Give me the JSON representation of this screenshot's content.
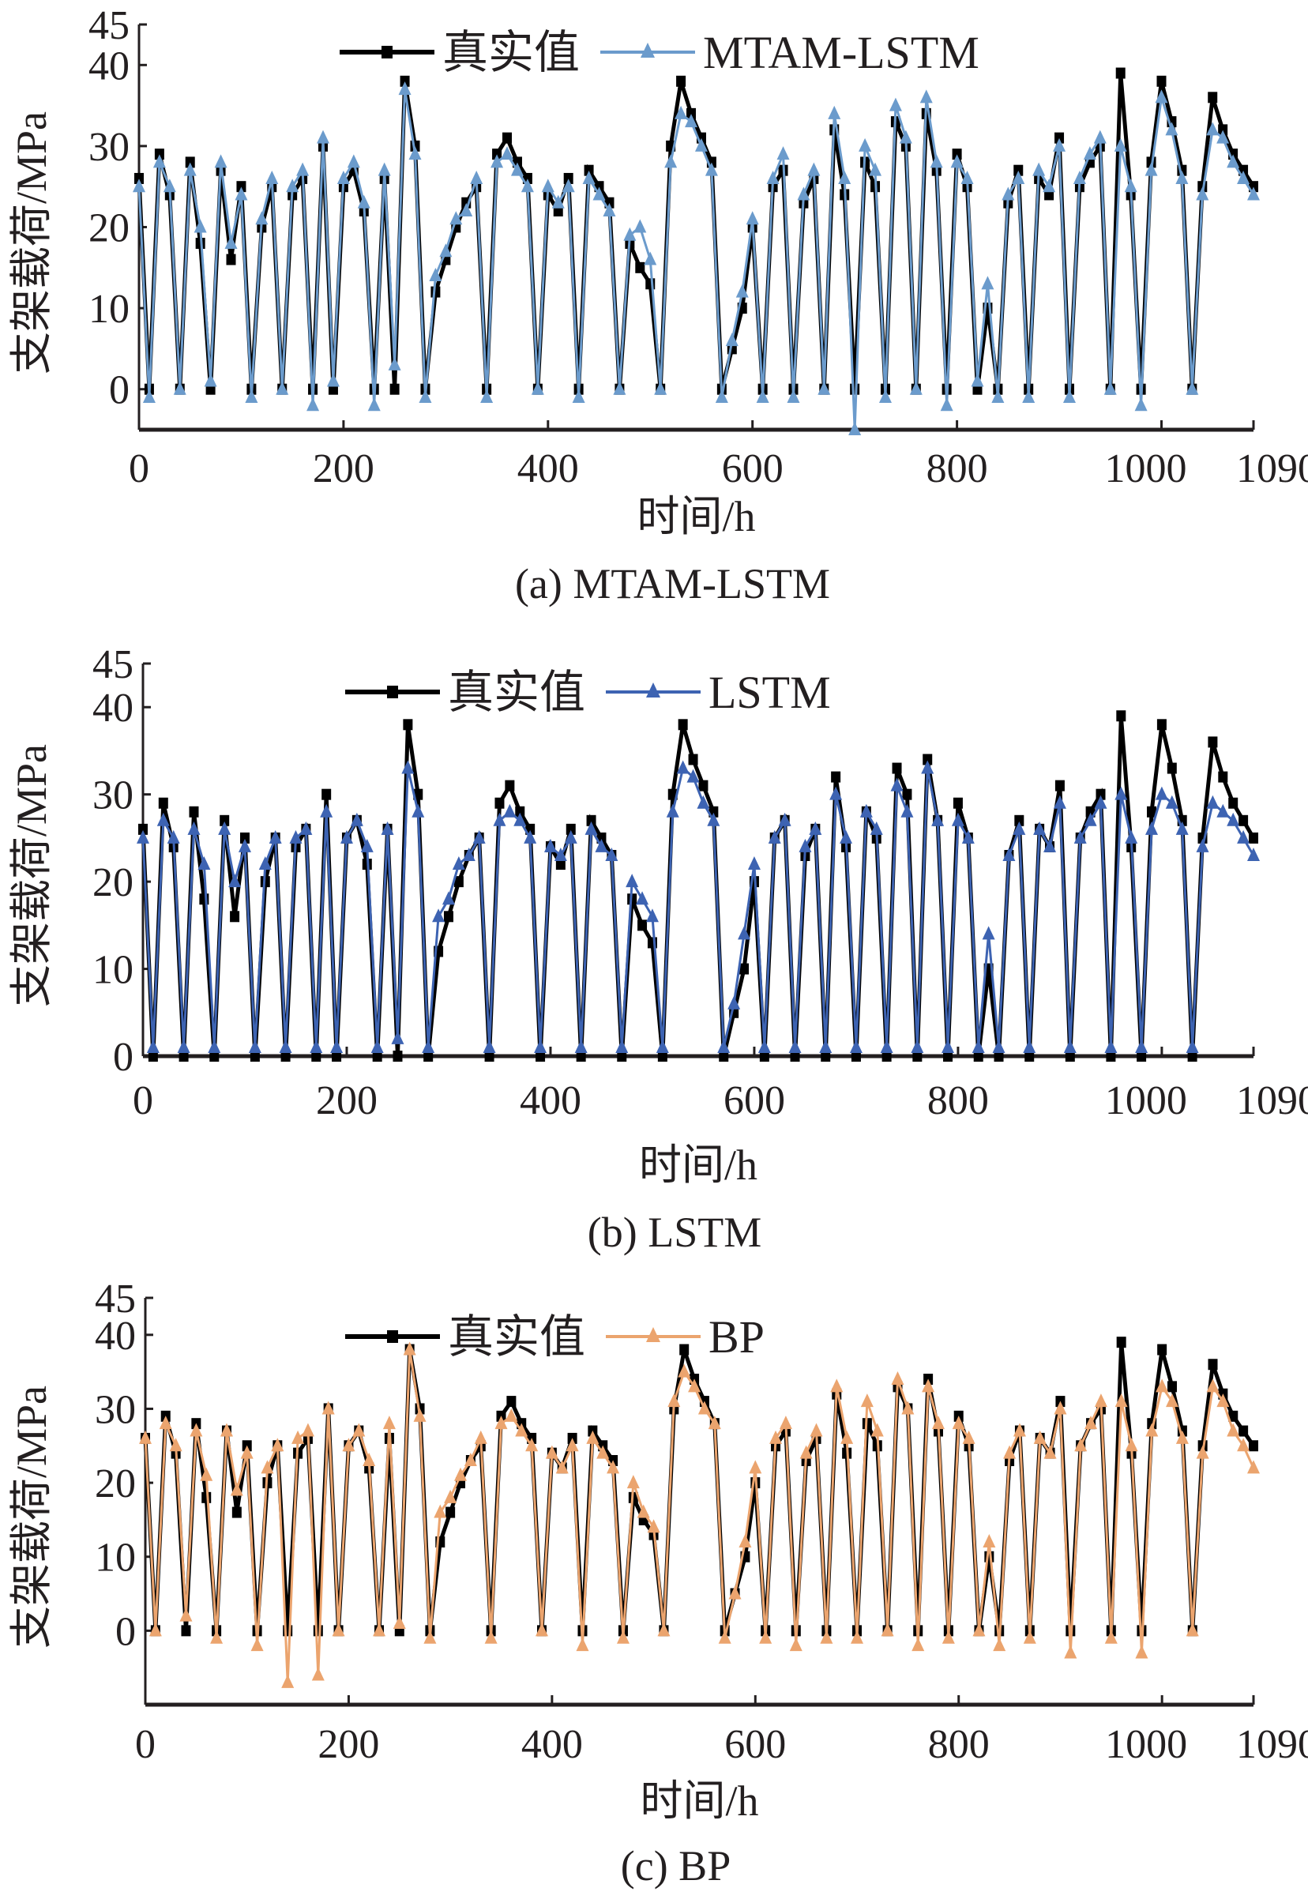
{
  "chart_data": [
    {
      "type": "line",
      "caption": "(a) MTAM-LSTM",
      "xlabel": "时间/h",
      "ylabel": "支架载荷/MPa",
      "xlim": [
        0,
        1090
      ],
      "ylim": [
        -5,
        45
      ],
      "xticks": [
        0,
        200,
        400,
        600,
        800,
        1000,
        1090
      ],
      "yticks": [
        0,
        10,
        20,
        30,
        40,
        45
      ],
      "grid": false,
      "legend_position": "top-center",
      "x_step": 10,
      "series": [
        {
          "name": "真实值",
          "color": "#000000",
          "marker": "square",
          "values": [
            26,
            0,
            29,
            24,
            0,
            28,
            18,
            0,
            27,
            16,
            25,
            0,
            20,
            25,
            0,
            24,
            26,
            0,
            30,
            0,
            25,
            27,
            22,
            0,
            26,
            0,
            38,
            30,
            0,
            12,
            16,
            20,
            23,
            25,
            0,
            29,
            31,
            28,
            26,
            0,
            24,
            22,
            26,
            0,
            27,
            25,
            23,
            0,
            18,
            15,
            13,
            0,
            30,
            38,
            34,
            31,
            28,
            0,
            5,
            10,
            20,
            0,
            25,
            27,
            0,
            23,
            26,
            0,
            32,
            24,
            0,
            28,
            25,
            0,
            33,
            30,
            0,
            34,
            27,
            0,
            29,
            25,
            0,
            10,
            0,
            23,
            27,
            0,
            26,
            24,
            31,
            0,
            25,
            28,
            30,
            0,
            39,
            24,
            0,
            28,
            38,
            33,
            27,
            0,
            25,
            36,
            32,
            29,
            27,
            25
          ]
        },
        {
          "name": "MTAM-LSTM",
          "color": "#6b9bcc",
          "marker": "triangle",
          "values": [
            25,
            -1,
            28,
            25,
            0,
            27,
            20,
            1,
            28,
            18,
            24,
            -1,
            21,
            26,
            0,
            25,
            27,
            -2,
            31,
            1,
            26,
            28,
            23,
            -2,
            27,
            3,
            37,
            29,
            -1,
            14,
            17,
            21,
            22,
            26,
            -1,
            28,
            29,
            27,
            25,
            0,
            25,
            23,
            25,
            -1,
            26,
            24,
            22,
            0,
            19,
            20,
            16,
            0,
            28,
            34,
            33,
            30,
            27,
            -1,
            6,
            12,
            21,
            -1,
            26,
            29,
            -1,
            24,
            27,
            0,
            34,
            26,
            -5,
            30,
            27,
            -1,
            35,
            31,
            0,
            36,
            28,
            -2,
            28,
            26,
            1,
            13,
            -1,
            24,
            26,
            -1,
            27,
            25,
            30,
            -1,
            26,
            29,
            31,
            0,
            30,
            25,
            -2,
            27,
            36,
            32,
            26,
            0,
            24,
            32,
            31,
            28,
            26,
            24
          ]
        }
      ]
    },
    {
      "type": "line",
      "caption": "(b) LSTM",
      "xlabel": "时间/h",
      "ylabel": "支架载荷/MPa",
      "xlim": [
        0,
        1090
      ],
      "ylim": [
        0,
        45
      ],
      "xticks": [
        0,
        200,
        400,
        600,
        800,
        1000,
        1090
      ],
      "yticks": [
        0,
        10,
        20,
        30,
        40,
        45
      ],
      "grid": false,
      "legend_position": "top-center",
      "x_step": 10,
      "series": [
        {
          "name": "真实值",
          "color": "#000000",
          "marker": "square",
          "values": [
            26,
            0,
            29,
            24,
            0,
            28,
            18,
            0,
            27,
            16,
            25,
            0,
            20,
            25,
            0,
            24,
            26,
            0,
            30,
            0,
            25,
            27,
            22,
            0,
            26,
            0,
            38,
            30,
            0,
            12,
            16,
            20,
            23,
            25,
            0,
            29,
            31,
            28,
            26,
            0,
            24,
            22,
            26,
            0,
            27,
            25,
            23,
            0,
            18,
            15,
            13,
            0,
            30,
            38,
            34,
            31,
            28,
            0,
            5,
            10,
            20,
            0,
            25,
            27,
            0,
            23,
            26,
            0,
            32,
            24,
            0,
            28,
            25,
            0,
            33,
            30,
            0,
            34,
            27,
            0,
            29,
            25,
            0,
            10,
            0,
            23,
            27,
            0,
            26,
            24,
            31,
            0,
            25,
            28,
            30,
            0,
            39,
            24,
            0,
            28,
            38,
            33,
            27,
            0,
            25,
            36,
            32,
            29,
            27,
            25
          ]
        },
        {
          "name": "LSTM",
          "color": "#3d63b2",
          "marker": "triangle",
          "values": [
            25,
            1,
            27,
            25,
            1,
            26,
            22,
            1,
            26,
            20,
            24,
            1,
            22,
            25,
            1,
            25,
            26,
            1,
            28,
            1,
            25,
            27,
            24,
            1,
            26,
            2,
            33,
            28,
            1,
            16,
            18,
            22,
            23,
            25,
            1,
            27,
            28,
            27,
            25,
            1,
            24,
            23,
            25,
            1,
            26,
            24,
            23,
            1,
            20,
            18,
            16,
            1,
            28,
            33,
            32,
            29,
            27,
            1,
            6,
            14,
            22,
            1,
            25,
            27,
            1,
            24,
            26,
            1,
            30,
            25,
            1,
            28,
            26,
            1,
            31,
            28,
            1,
            33,
            27,
            1,
            27,
            25,
            1,
            14,
            1,
            23,
            26,
            1,
            26,
            24,
            29,
            1,
            25,
            27,
            29,
            1,
            30,
            25,
            1,
            26,
            30,
            29,
            26,
            1,
            24,
            29,
            28,
            27,
            25,
            23
          ]
        }
      ]
    },
    {
      "type": "line",
      "caption": "(c) BP",
      "xlabel": "时间/h",
      "ylabel": "支架载荷/MPa",
      "xlim": [
        0,
        1090
      ],
      "ylim": [
        -10,
        45
      ],
      "xticks": [
        0,
        200,
        400,
        600,
        800,
        1000,
        1090
      ],
      "yticks": [
        0,
        10,
        20,
        30,
        40,
        45
      ],
      "grid": false,
      "legend_position": "top-center",
      "x_step": 10,
      "series": [
        {
          "name": "真实值",
          "color": "#000000",
          "marker": "square",
          "values": [
            26,
            0,
            29,
            24,
            0,
            28,
            18,
            0,
            27,
            16,
            25,
            0,
            20,
            25,
            0,
            24,
            26,
            0,
            30,
            0,
            25,
            27,
            22,
            0,
            26,
            0,
            38,
            30,
            0,
            12,
            16,
            20,
            23,
            25,
            0,
            29,
            31,
            28,
            26,
            0,
            24,
            22,
            26,
            0,
            27,
            25,
            23,
            0,
            18,
            15,
            13,
            0,
            30,
            38,
            34,
            31,
            28,
            0,
            5,
            10,
            20,
            0,
            25,
            27,
            0,
            23,
            26,
            0,
            32,
            24,
            0,
            28,
            25,
            0,
            33,
            30,
            0,
            34,
            27,
            0,
            29,
            25,
            0,
            10,
            0,
            23,
            27,
            0,
            26,
            24,
            31,
            0,
            25,
            28,
            30,
            0,
            39,
            24,
            0,
            28,
            38,
            33,
            27,
            0,
            25,
            36,
            32,
            29,
            27,
            25
          ]
        },
        {
          "name": "BP",
          "color": "#eba46e",
          "marker": "triangle",
          "values": [
            26,
            0,
            28,
            25,
            2,
            27,
            21,
            -1,
            27,
            19,
            24,
            -2,
            22,
            25,
            -7,
            26,
            27,
            -6,
            30,
            0,
            25,
            27,
            23,
            0,
            28,
            1,
            38,
            29,
            -1,
            16,
            18,
            21,
            23,
            26,
            -1,
            28,
            29,
            27,
            25,
            0,
            24,
            22,
            25,
            -2,
            26,
            24,
            22,
            -1,
            20,
            16,
            14,
            0,
            31,
            35,
            33,
            30,
            28,
            -1,
            5,
            12,
            22,
            -1,
            26,
            28,
            -2,
            24,
            27,
            -1,
            33,
            26,
            -1,
            31,
            27,
            0,
            34,
            30,
            -2,
            33,
            28,
            -1,
            28,
            26,
            0,
            12,
            -2,
            24,
            27,
            -1,
            26,
            24,
            30,
            -3,
            25,
            28,
            31,
            -1,
            31,
            25,
            -3,
            27,
            33,
            31,
            26,
            0,
            24,
            33,
            31,
            27,
            25,
            22
          ]
        }
      ]
    }
  ]
}
